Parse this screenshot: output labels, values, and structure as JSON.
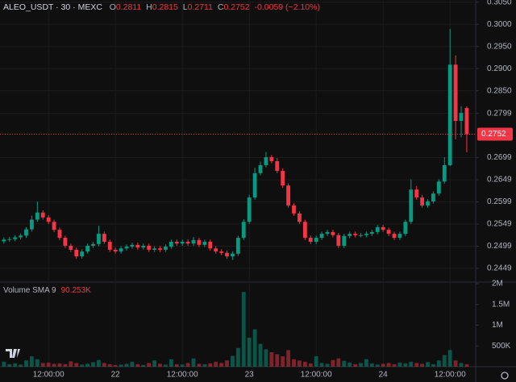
{
  "header": {
    "title": "ALEO_USDT · 30 · MEXC",
    "o": "O",
    "open": 0.2811,
    "h": "H",
    "high": 0.2815,
    "l": "L",
    "low": 0.2711,
    "c": "C",
    "close": 0.2752,
    "change": "-0.0059 (−2.10%)"
  },
  "chart_data": {
    "type": "candlestick",
    "up_color": "#089981",
    "down_color": "#f23645",
    "grid": true,
    "x": [
      4,
      5,
      6,
      7,
      8,
      9,
      10,
      11,
      12,
      13,
      14,
      15,
      16,
      17,
      18,
      19,
      20,
      21,
      22,
      23,
      24,
      25,
      26,
      27,
      28,
      29,
      30,
      31,
      32,
      33,
      34,
      35,
      36,
      37,
      38,
      39,
      40,
      41,
      42,
      43,
      44,
      45,
      46,
      47,
      48,
      49,
      50,
      51,
      52,
      53,
      54,
      55,
      56,
      57,
      58,
      59,
      60,
      61,
      62,
      63,
      64,
      65,
      66,
      67,
      68,
      69,
      70,
      71,
      72,
      73,
      74,
      75,
      76,
      77,
      78,
      79,
      80,
      81,
      82,
      83,
      84,
      85,
      86,
      87
    ],
    "open": [
      0.251,
      0.2514,
      0.2515,
      0.2519,
      0.2523,
      0.2537,
      0.2559,
      0.2575,
      0.2564,
      0.2554,
      0.2536,
      0.2518,
      0.25,
      0.2491,
      0.2476,
      0.2487,
      0.25,
      0.2504,
      0.2527,
      0.2509,
      0.2491,
      0.2487,
      0.2494,
      0.2498,
      0.2502,
      0.2496,
      0.25,
      0.2491,
      0.2494,
      0.2491,
      0.2498,
      0.2509,
      0.2505,
      0.2509,
      0.2505,
      0.2513,
      0.2502,
      0.2509,
      0.2494,
      0.2487,
      0.2484,
      0.2476,
      0.2482,
      0.2518,
      0.2554,
      0.2609,
      0.2664,
      0.2682,
      0.27,
      0.2691,
      0.2669,
      0.2636,
      0.2591,
      0.2573,
      0.2554,
      0.2518,
      0.2509,
      0.2518,
      0.2527,
      0.2531,
      0.2524,
      0.25,
      0.2522,
      0.2527,
      0.2524,
      0.2524,
      0.2527,
      0.2531,
      0.2542,
      0.2536,
      0.2527,
      0.2518,
      0.2527,
      0.2554,
      0.2627,
      0.2609,
      0.2591,
      0.26,
      0.2618,
      0.2645,
      0.2682,
      0.2909,
      0.2782,
      0.2811
    ],
    "high": [
      0.2519,
      0.252,
      0.2524,
      0.2528,
      0.2542,
      0.2568,
      0.26,
      0.258,
      0.2569,
      0.2559,
      0.2541,
      0.2523,
      0.2505,
      0.2496,
      0.2492,
      0.2505,
      0.2509,
      0.2545,
      0.2532,
      0.2514,
      0.2496,
      0.2499,
      0.2503,
      0.2507,
      0.2507,
      0.2505,
      0.2505,
      0.2499,
      0.2499,
      0.2503,
      0.2514,
      0.2514,
      0.2514,
      0.2514,
      0.252,
      0.2518,
      0.2514,
      0.2514,
      0.2499,
      0.2492,
      0.2489,
      0.2487,
      0.2523,
      0.256,
      0.2615,
      0.2676,
      0.269,
      0.2712,
      0.2705,
      0.2698,
      0.2675,
      0.2641,
      0.2596,
      0.2578,
      0.2559,
      0.2523,
      0.2523,
      0.2532,
      0.2536,
      0.2536,
      0.2529,
      0.2527,
      0.2532,
      0.2532,
      0.2529,
      0.2532,
      0.2536,
      0.2547,
      0.2547,
      0.2541,
      0.2532,
      0.2532,
      0.2559,
      0.265,
      0.2635,
      0.2615,
      0.2605,
      0.2623,
      0.265,
      0.27,
      0.299,
      0.293,
      0.2815,
      0.2815
    ],
    "low": [
      0.2505,
      0.2509,
      0.251,
      0.2514,
      0.2518,
      0.2532,
      0.2554,
      0.2559,
      0.2549,
      0.2531,
      0.2513,
      0.2495,
      0.2486,
      0.2471,
      0.2471,
      0.2482,
      0.2495,
      0.2499,
      0.2504,
      0.2486,
      0.2482,
      0.2482,
      0.2489,
      0.2493,
      0.2491,
      0.2491,
      0.2486,
      0.2486,
      0.2486,
      0.2486,
      0.2493,
      0.25,
      0.25,
      0.25,
      0.25,
      0.2497,
      0.2497,
      0.2489,
      0.2482,
      0.2479,
      0.2471,
      0.2468,
      0.2477,
      0.2513,
      0.2549,
      0.2604,
      0.2659,
      0.2677,
      0.2686,
      0.2664,
      0.2631,
      0.2586,
      0.2568,
      0.2549,
      0.2513,
      0.2504,
      0.2504,
      0.2513,
      0.2522,
      0.2519,
      0.2495,
      0.2495,
      0.2517,
      0.2519,
      0.2519,
      0.2519,
      0.2522,
      0.2526,
      0.2531,
      0.2522,
      0.2513,
      0.2513,
      0.2522,
      0.2549,
      0.2604,
      0.2586,
      0.2586,
      0.2595,
      0.2613,
      0.264,
      0.268,
      0.274,
      0.2745,
      0.2711
    ],
    "close": [
      0.2514,
      0.2515,
      0.2519,
      0.2523,
      0.2537,
      0.2559,
      0.2575,
      0.2564,
      0.2554,
      0.2536,
      0.2518,
      0.25,
      0.2491,
      0.2476,
      0.2487,
      0.25,
      0.2504,
      0.2527,
      0.2509,
      0.2491,
      0.2487,
      0.2494,
      0.2498,
      0.2502,
      0.2496,
      0.25,
      0.2491,
      0.2494,
      0.2491,
      0.2498,
      0.2509,
      0.2505,
      0.2509,
      0.2505,
      0.2513,
      0.2502,
      0.2509,
      0.2494,
      0.2487,
      0.2484,
      0.2476,
      0.2482,
      0.2518,
      0.2554,
      0.2609,
      0.2664,
      0.2682,
      0.27,
      0.2691,
      0.2669,
      0.2636,
      0.2591,
      0.2573,
      0.2554,
      0.2518,
      0.2509,
      0.2518,
      0.2527,
      0.2531,
      0.2524,
      0.25,
      0.2522,
      0.2527,
      0.2524,
      0.2524,
      0.2527,
      0.2531,
      0.2542,
      0.2536,
      0.2527,
      0.2518,
      0.2527,
      0.2554,
      0.2627,
      0.2609,
      0.2591,
      0.26,
      0.2618,
      0.2645,
      0.2682,
      0.2909,
      0.2782,
      0.28,
      0.2752
    ],
    "xlim": [
      3.3,
      88.6
    ],
    "xticks": [
      {
        "value": 12,
        "label": "12:00:00"
      },
      {
        "value": 24,
        "label": "22"
      },
      {
        "value": 36,
        "label": "12:00:00"
      },
      {
        "value": 48,
        "label": "23"
      },
      {
        "value": 60,
        "label": "12:00:00"
      },
      {
        "value": 72,
        "label": "24"
      },
      {
        "value": 84,
        "label": "12:00:00"
      }
    ],
    "ylim": [
      0.2418,
      0.3055
    ],
    "yticks": [
      {
        "value": 0.305,
        "label": "0.3050"
      },
      {
        "value": 0.3,
        "label": "0.3000"
      },
      {
        "value": 0.295,
        "label": "0.2950"
      },
      {
        "value": 0.29,
        "label": "0.2900"
      },
      {
        "value": 0.285,
        "label": "0.2850"
      },
      0.2799,
      0.2699,
      0.2649,
      0.2599,
      0.2549,
      0.2499,
      0.2449
    ],
    "last_price": 0.2752,
    "volume": {
      "name": "Volume SMA 9",
      "sma": "90.253K",
      "values": [
        120000,
        60000,
        80000,
        50000,
        150000,
        250000,
        180000,
        90000,
        100000,
        70000,
        80000,
        60000,
        130000,
        90000,
        50000,
        70000,
        110000,
        160000,
        90000,
        60000,
        40000,
        50000,
        70000,
        120000,
        60000,
        40000,
        90000,
        150000,
        70000,
        50000,
        180000,
        60000,
        50000,
        90000,
        200000,
        70000,
        60000,
        80000,
        120000,
        90000,
        150000,
        260000,
        450000,
        1800000,
        700000,
        900000,
        550000,
        420000,
        350000,
        300000,
        250000,
        400000,
        180000,
        150000,
        120000,
        80000,
        250000,
        90000,
        70000,
        160000,
        200000,
        140000,
        100000,
        60000,
        90000,
        180000,
        80000,
        50000,
        70000,
        90000,
        60000,
        100000,
        80000,
        120000,
        90000,
        70000,
        110000,
        60000,
        150000,
        280000,
        400000,
        150000,
        90000,
        60000
      ],
      "y2lim": [
        0,
        2000000
      ],
      "y2ticks": [
        {
          "value": 2000000,
          "label": "2M"
        },
        {
          "value": 1500000,
          "label": "1.5M"
        },
        {
          "value": 1000000,
          "label": "1M"
        },
        {
          "value": 500000,
          "label": "500K"
        }
      ]
    }
  }
}
